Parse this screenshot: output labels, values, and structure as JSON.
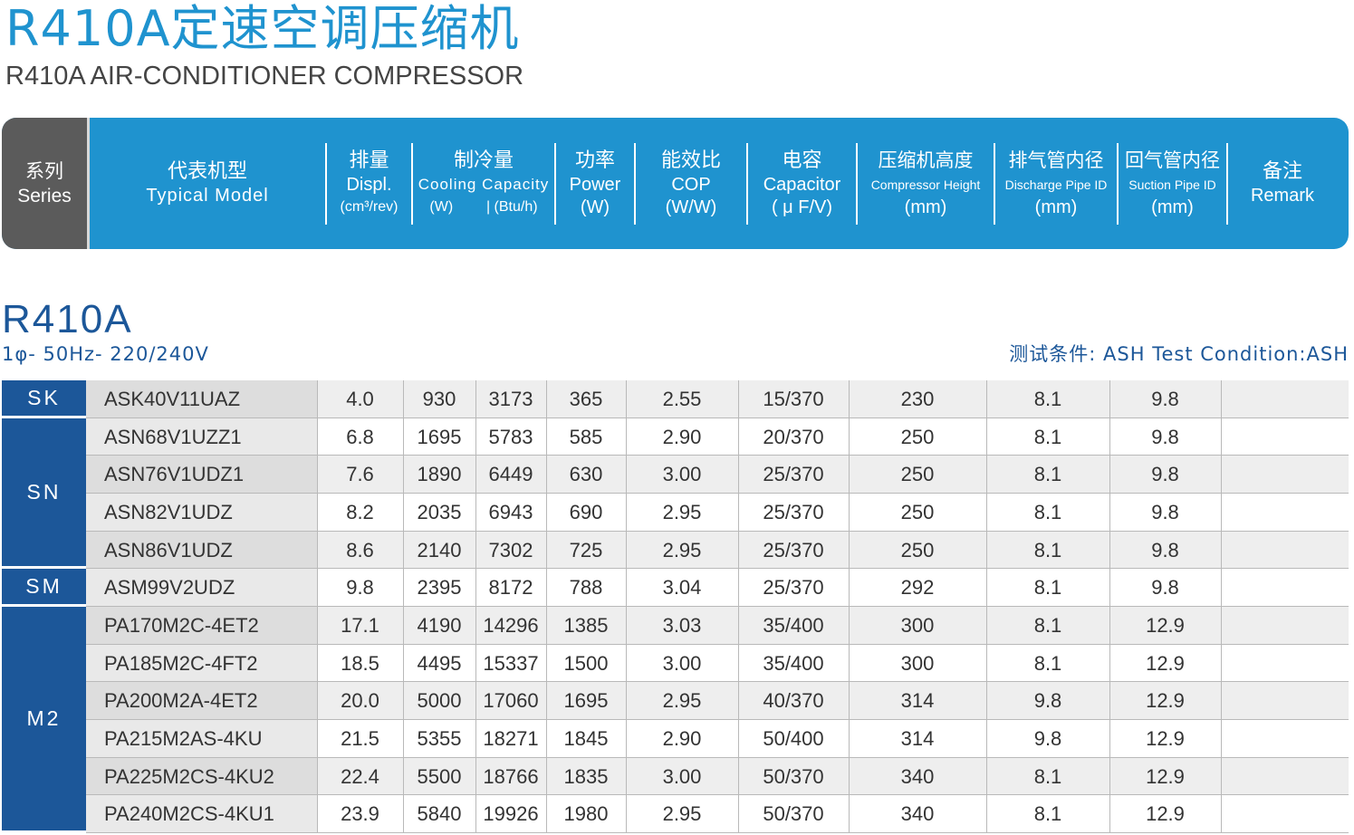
{
  "title_cn": "R410A定速空调压缩机",
  "title_en": "R410A AIR-CONDITIONER COMPRESSOR",
  "header": {
    "series": {
      "cn": "系列",
      "en": "Series"
    },
    "model": {
      "cn": "代表机型",
      "en": "Typical Model"
    },
    "displ": {
      "cn": "排量",
      "en": "Displ.",
      "unit": "(cm³/rev)"
    },
    "cooling": {
      "cn": "制冷量",
      "en": "Cooling Capacity",
      "unit_w": "(W)",
      "unit_btu": "| (Btu/h)"
    },
    "power": {
      "cn": "功率",
      "en": "Power",
      "unit": "(W)"
    },
    "cop": {
      "cn": "能效比",
      "en": "COP",
      "unit": "(W/W)"
    },
    "capacitor": {
      "cn": "电容",
      "en": "Capacitor",
      "unit": "( μ F/V)"
    },
    "height": {
      "cn": "压缩机高度",
      "en": "Compressor Height",
      "unit": "(mm)"
    },
    "discharge": {
      "cn": "排气管内径",
      "en": "Discharge Pipe ID",
      "unit": "(mm)"
    },
    "suction": {
      "cn": "回气管内径",
      "en": "Suction Pipe ID",
      "unit": "(mm)"
    },
    "remark": {
      "cn": "备注",
      "en": "Remark"
    }
  },
  "section": {
    "title": "R410A",
    "subtitle": "1φ- 50Hz- 220/240V",
    "test_condition": "测试条件: ASH   Test Condition:ASH"
  },
  "series_groups": [
    {
      "name": "SK",
      "rows": 1
    },
    {
      "name": "SN",
      "rows": 4
    },
    {
      "name": "SM",
      "rows": 1
    },
    {
      "name": "M2",
      "rows": 6
    }
  ],
  "rows": [
    {
      "model": "ASK40V11UAZ",
      "displ": "4.0",
      "w": "930",
      "btu": "3173",
      "power": "365",
      "cop": "2.55",
      "cap": "15/370",
      "height": "230",
      "discharge": "8.1",
      "suction": "9.8",
      "remark": ""
    },
    {
      "model": "ASN68V1UZZ1",
      "displ": "6.8",
      "w": "1695",
      "btu": "5783",
      "power": "585",
      "cop": "2.90",
      "cap": "20/370",
      "height": "250",
      "discharge": "8.1",
      "suction": "9.8",
      "remark": ""
    },
    {
      "model": "ASN76V1UDZ1",
      "displ": "7.6",
      "w": "1890",
      "btu": "6449",
      "power": "630",
      "cop": "3.00",
      "cap": "25/370",
      "height": "250",
      "discharge": "8.1",
      "suction": "9.8",
      "remark": ""
    },
    {
      "model": "ASN82V1UDZ",
      "displ": "8.2",
      "w": "2035",
      "btu": "6943",
      "power": "690",
      "cop": "2.95",
      "cap": "25/370",
      "height": "250",
      "discharge": "8.1",
      "suction": "9.8",
      "remark": ""
    },
    {
      "model": "ASN86V1UDZ",
      "displ": "8.6",
      "w": "2140",
      "btu": "7302",
      "power": "725",
      "cop": "2.95",
      "cap": "25/370",
      "height": "250",
      "discharge": "8.1",
      "suction": "9.8",
      "remark": ""
    },
    {
      "model": "ASM99V2UDZ",
      "displ": "9.8",
      "w": "2395",
      "btu": "8172",
      "power": "788",
      "cop": "3.04",
      "cap": "25/370",
      "height": "292",
      "discharge": "8.1",
      "suction": "9.8",
      "remark": ""
    },
    {
      "model": "PA170M2C-4ET2",
      "displ": "17.1",
      "w": "4190",
      "btu": "14296",
      "power": "1385",
      "cop": "3.03",
      "cap": "35/400",
      "height": "300",
      "discharge": "8.1",
      "suction": "12.9",
      "remark": ""
    },
    {
      "model": "PA185M2C-4FT2",
      "displ": "18.5",
      "w": "4495",
      "btu": "15337",
      "power": "1500",
      "cop": "3.00",
      "cap": "35/400",
      "height": "300",
      "discharge": "8.1",
      "suction": "12.9",
      "remark": ""
    },
    {
      "model": "PA200M2A-4ET2",
      "displ": "20.0",
      "w": "5000",
      "btu": "17060",
      "power": "1695",
      "cop": "2.95",
      "cap": "40/370",
      "height": "314",
      "discharge": "9.8",
      "suction": "12.9",
      "remark": ""
    },
    {
      "model": "PA215M2AS-4KU",
      "displ": "21.5",
      "w": "5355",
      "btu": "18271",
      "power": "1845",
      "cop": "2.90",
      "cap": "50/400",
      "height": "314",
      "discharge": "9.8",
      "suction": "12.9",
      "remark": ""
    },
    {
      "model": "PA225M2CS-4KU2",
      "displ": "22.4",
      "w": "5500",
      "btu": "18766",
      "power": "1835",
      "cop": "3.00",
      "cap": "50/370",
      "height": "340",
      "discharge": "8.1",
      "suction": "12.9",
      "remark": ""
    },
    {
      "model": "PA240M2CS-4KU1",
      "displ": "23.9",
      "w": "5840",
      "btu": "19926",
      "power": "1980",
      "cop": "2.95",
      "cap": "50/370",
      "height": "340",
      "discharge": "8.1",
      "suction": "12.9",
      "remark": ""
    }
  ],
  "colors": {
    "header_blue": "#1f93cf",
    "series_gray": "#5b5b5b",
    "series_blue": "#1c5799"
  }
}
